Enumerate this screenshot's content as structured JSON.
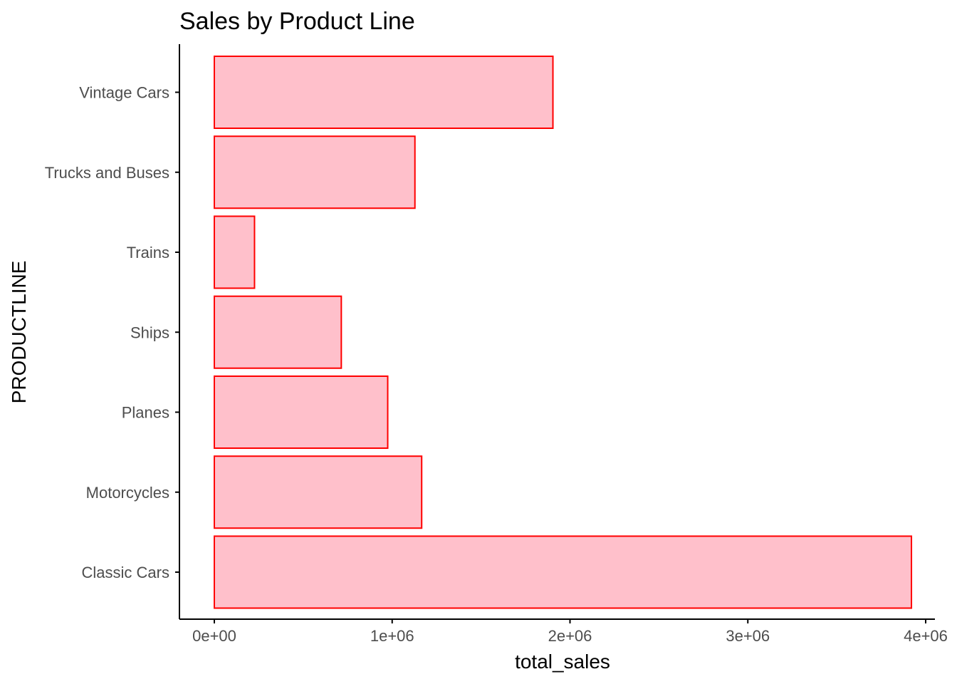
{
  "chart_data": {
    "type": "bar",
    "orientation": "horizontal",
    "title": "Sales by Product Line",
    "xlabel": "total_sales",
    "ylabel": "PRODUCTLINE",
    "categories": [
      "Classic Cars",
      "Motorcycles",
      "Planes",
      "Ships",
      "Trains",
      "Trucks and Buses",
      "Vintage Cars"
    ],
    "values": [
      3920000,
      1166000,
      975000,
      714000,
      226000,
      1128000,
      1904000
    ],
    "xlim": [
      0,
      4000000
    ],
    "xticks": [
      0,
      1000000,
      2000000,
      3000000,
      4000000
    ],
    "xtick_labels": [
      "0e+00",
      "1e+06",
      "2e+06",
      "3e+06",
      "4e+06"
    ],
    "grid": false,
    "legend": "none",
    "colors": {
      "bar_fill": "#FFC0CB",
      "bar_stroke": "#FF0000",
      "axis": "#000000",
      "tick_label": "#4D4D4D"
    }
  }
}
